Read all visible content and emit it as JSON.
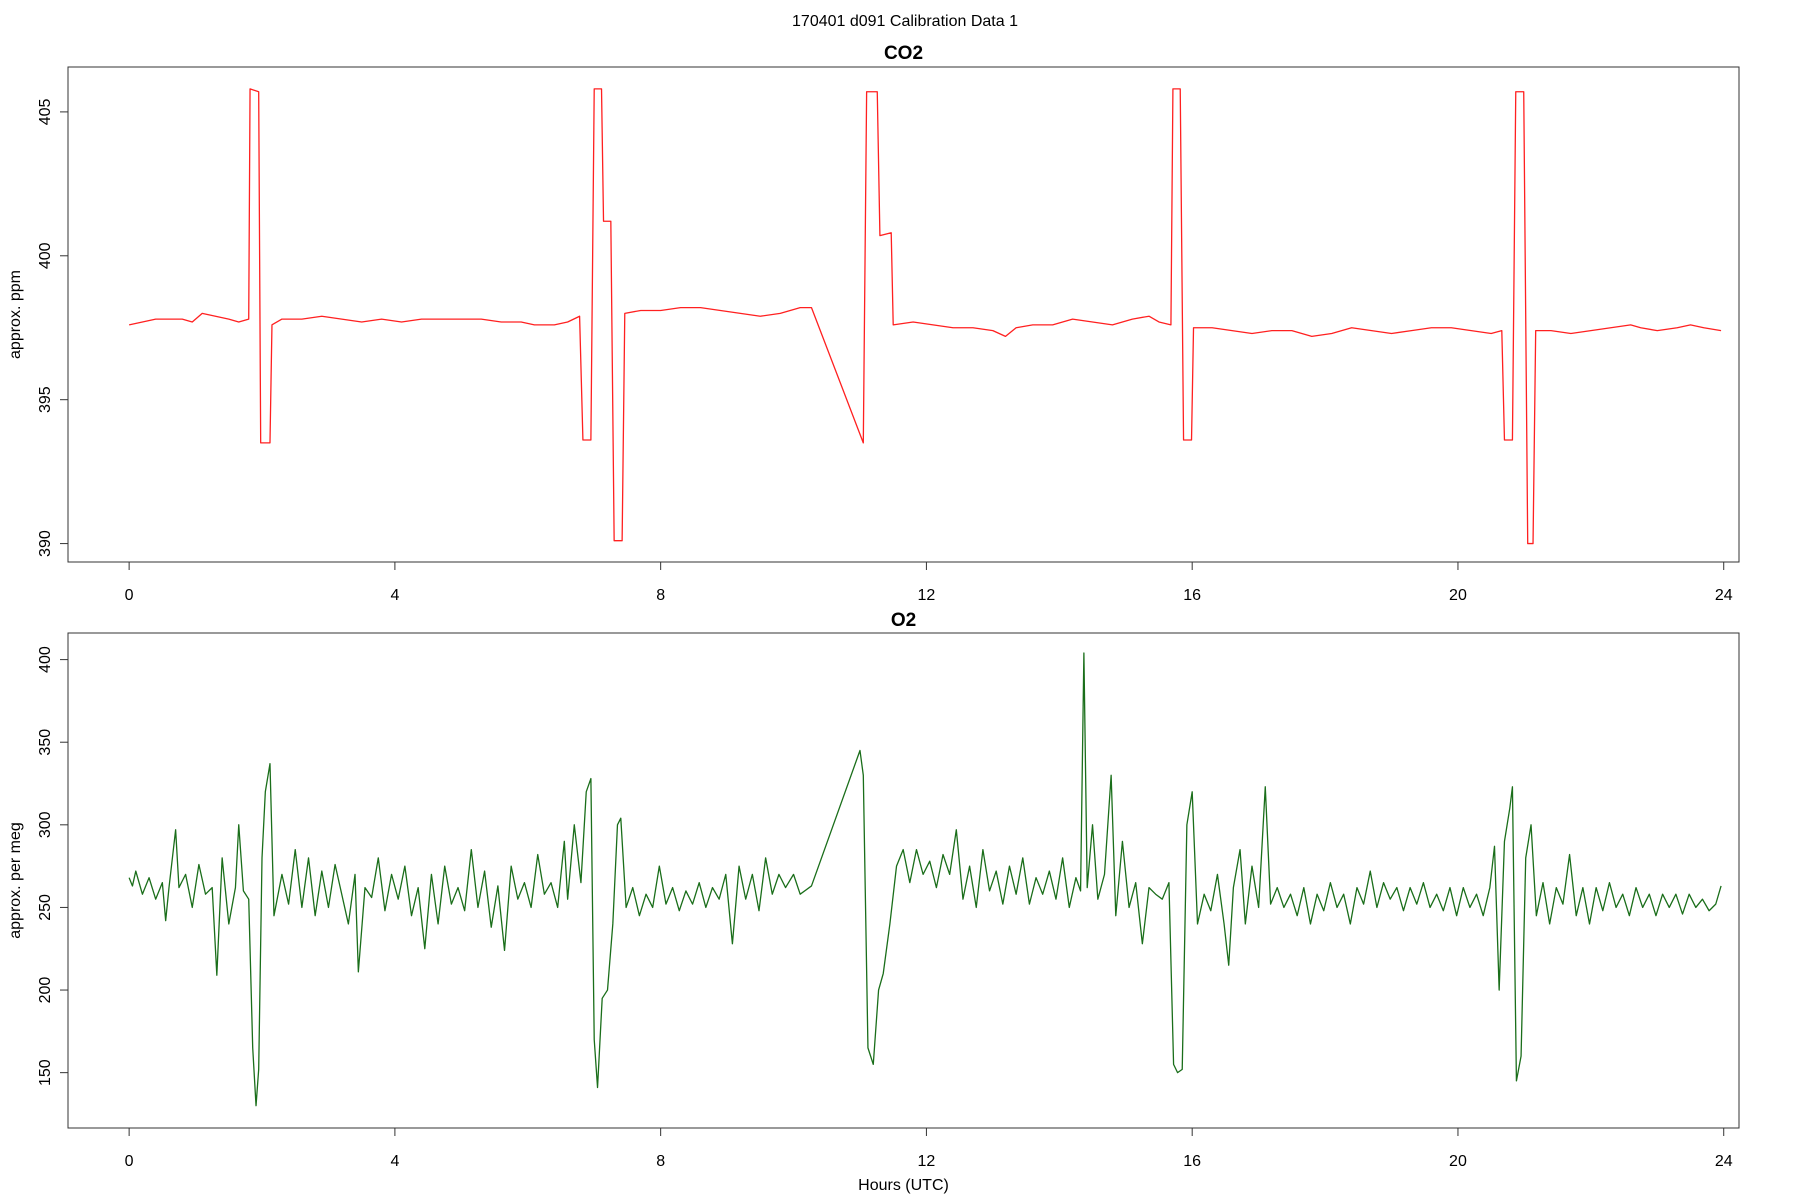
{
  "title": "170401   d091   Calibration Data 1",
  "chart_data": [
    {
      "type": "line",
      "title": "CO2",
      "ylabel": "approx. ppm",
      "color": "#ff2020",
      "xlim": [
        -0.92,
        24.23
      ],
      "xticks": [
        0,
        4,
        8,
        12,
        16,
        20,
        24
      ],
      "ylim": [
        389.36,
        406.56
      ],
      "yticks": [
        390,
        395,
        400,
        405
      ],
      "x": [
        0.0,
        0.2,
        0.4,
        0.6,
        0.8,
        0.95,
        1.1,
        1.3,
        1.5,
        1.65,
        1.8,
        1.82,
        1.95,
        1.98,
        2.12,
        2.15,
        2.3,
        2.6,
        2.9,
        3.2,
        3.5,
        3.8,
        4.1,
        4.4,
        4.7,
        5.0,
        5.3,
        5.6,
        5.9,
        6.1,
        6.4,
        6.6,
        6.78,
        6.83,
        6.95,
        7.0,
        7.11,
        7.14,
        7.25,
        7.3,
        7.42,
        7.46,
        7.7,
        8.0,
        8.3,
        8.6,
        8.9,
        9.2,
        9.5,
        9.8,
        10.1,
        10.27,
        11.05,
        11.1,
        11.26,
        11.3,
        11.47,
        11.5,
        11.8,
        12.1,
        12.4,
        12.7,
        13.0,
        13.19,
        13.35,
        13.6,
        13.9,
        14.2,
        14.5,
        14.8,
        15.1,
        15.35,
        15.5,
        15.68,
        15.71,
        15.82,
        15.87,
        15.99,
        16.02,
        16.3,
        16.6,
        16.9,
        17.2,
        17.5,
        17.8,
        18.1,
        18.4,
        18.7,
        19.0,
        19.3,
        19.6,
        19.9,
        20.2,
        20.5,
        20.66,
        20.7,
        20.82,
        20.87,
        20.99,
        21.05,
        21.13,
        21.17,
        21.4,
        21.7,
        22.0,
        22.3,
        22.6,
        22.75,
        23.0,
        23.3,
        23.5,
        23.7,
        23.96
      ],
      "values": [
        397.6,
        397.7,
        397.8,
        397.8,
        397.8,
        397.7,
        398.0,
        397.9,
        397.8,
        397.7,
        397.8,
        405.8,
        405.7,
        393.5,
        393.5,
        397.6,
        397.8,
        397.8,
        397.9,
        397.8,
        397.7,
        397.8,
        397.7,
        397.8,
        397.8,
        397.8,
        397.8,
        397.7,
        397.7,
        397.6,
        397.6,
        397.7,
        397.9,
        393.6,
        393.6,
        405.8,
        405.8,
        401.2,
        401.2,
        390.1,
        390.1,
        398.0,
        398.1,
        398.1,
        398.2,
        398.2,
        398.1,
        398.0,
        397.9,
        398.0,
        398.2,
        398.2,
        393.5,
        405.7,
        405.7,
        400.7,
        400.8,
        397.6,
        397.7,
        397.6,
        397.5,
        397.5,
        397.4,
        397.2,
        397.5,
        397.6,
        397.6,
        397.8,
        397.7,
        397.6,
        397.8,
        397.9,
        397.7,
        397.6,
        405.8,
        405.8,
        393.6,
        393.6,
        397.5,
        397.5,
        397.4,
        397.3,
        397.4,
        397.4,
        397.2,
        397.3,
        397.5,
        397.4,
        397.3,
        397.4,
        397.5,
        397.5,
        397.4,
        397.3,
        397.4,
        393.6,
        393.6,
        405.7,
        405.7,
        390.0,
        390.0,
        397.4,
        397.4,
        397.3,
        397.4,
        397.5,
        397.6,
        397.5,
        397.4,
        397.5,
        397.6,
        397.5,
        397.4
      ]
    },
    {
      "type": "line",
      "title": "O2",
      "ylabel": "approx. per meg",
      "xlabel": "Hours (UTC)",
      "color": "#1a6e1a",
      "xlim": [
        -0.92,
        24.23
      ],
      "xticks": [
        0,
        4,
        8,
        12,
        16,
        20,
        24
      ],
      "ylim": [
        116.5,
        416.1
      ],
      "yticks": [
        150,
        200,
        250,
        300,
        350,
        400
      ],
      "x": [
        0.0,
        0.05,
        0.1,
        0.2,
        0.3,
        0.4,
        0.5,
        0.55,
        0.6,
        0.7,
        0.75,
        0.85,
        0.95,
        1.05,
        1.15,
        1.25,
        1.32,
        1.4,
        1.5,
        1.6,
        1.65,
        1.72,
        1.8,
        1.86,
        1.91,
        1.95,
        2.0,
        2.05,
        2.12,
        2.18,
        2.3,
        2.4,
        2.5,
        2.6,
        2.7,
        2.8,
        2.9,
        3.0,
        3.1,
        3.2,
        3.3,
        3.4,
        3.45,
        3.55,
        3.65,
        3.75,
        3.85,
        3.95,
        4.05,
        4.15,
        4.25,
        4.35,
        4.45,
        4.55,
        4.65,
        4.75,
        4.85,
        4.95,
        5.05,
        5.15,
        5.25,
        5.35,
        5.45,
        5.55,
        5.65,
        5.75,
        5.85,
        5.95,
        6.05,
        6.15,
        6.25,
        6.35,
        6.45,
        6.55,
        6.6,
        6.7,
        6.8,
        6.88,
        6.95,
        7.0,
        7.05,
        7.12,
        7.2,
        7.28,
        7.35,
        7.4,
        7.48,
        7.58,
        7.68,
        7.78,
        7.88,
        7.98,
        8.08,
        8.18,
        8.28,
        8.38,
        8.48,
        8.58,
        8.68,
        8.78,
        8.88,
        8.98,
        9.08,
        9.18,
        9.28,
        9.38,
        9.48,
        9.58,
        9.68,
        9.78,
        9.88,
        10.0,
        10.1,
        10.27,
        11.0,
        11.05,
        11.12,
        11.2,
        11.28,
        11.35,
        11.45,
        11.55,
        11.65,
        11.75,
        11.85,
        11.95,
        12.05,
        12.15,
        12.25,
        12.35,
        12.45,
        12.55,
        12.65,
        12.75,
        12.85,
        12.95,
        13.05,
        13.15,
        13.25,
        13.35,
        13.45,
        13.55,
        13.65,
        13.75,
        13.85,
        13.95,
        14.05,
        14.15,
        14.25,
        14.32,
        14.37,
        14.42,
        14.5,
        14.58,
        14.68,
        14.78,
        14.85,
        14.95,
        15.05,
        15.15,
        15.25,
        15.35,
        15.45,
        15.55,
        15.65,
        15.72,
        15.78,
        15.85,
        15.92,
        16.0,
        16.08,
        16.18,
        16.28,
        16.38,
        16.48,
        16.55,
        16.62,
        16.72,
        16.8,
        16.9,
        17.0,
        17.1,
        17.18,
        17.28,
        17.38,
        17.48,
        17.58,
        17.68,
        17.78,
        17.88,
        17.98,
        18.08,
        18.18,
        18.28,
        18.38,
        18.48,
        18.58,
        18.68,
        18.78,
        18.88,
        18.98,
        19.08,
        19.18,
        19.28,
        19.38,
        19.48,
        19.58,
        19.68,
        19.78,
        19.88,
        19.98,
        20.08,
        20.18,
        20.28,
        20.38,
        20.48,
        20.55,
        20.62,
        20.7,
        20.78,
        20.82,
        20.88,
        20.95,
        21.02,
        21.1,
        21.18,
        21.28,
        21.38,
        21.48,
        21.58,
        21.68,
        21.78,
        21.88,
        21.98,
        22.08,
        22.18,
        22.28,
        22.38,
        22.48,
        22.58,
        22.68,
        22.78,
        22.88,
        22.98,
        23.08,
        23.18,
        23.28,
        23.38,
        23.48,
        23.58,
        23.68,
        23.78,
        23.88,
        23.96
      ],
      "values": [
        268,
        263,
        272,
        258,
        268,
        255,
        265,
        242,
        262,
        297,
        262,
        270,
        250,
        276,
        258,
        262,
        209,
        280,
        240,
        262,
        300,
        260,
        255,
        165,
        130,
        152,
        280,
        320,
        337,
        245,
        270,
        252,
        285,
        250,
        280,
        245,
        272,
        250,
        276,
        258,
        240,
        270,
        211,
        262,
        256,
        280,
        248,
        270,
        255,
        275,
        245,
        262,
        225,
        270,
        240,
        275,
        252,
        262,
        248,
        285,
        250,
        272,
        238,
        263,
        224,
        275,
        255,
        265,
        250,
        282,
        258,
        265,
        250,
        290,
        255,
        300,
        265,
        320,
        328,
        170,
        141,
        195,
        200,
        240,
        300,
        304,
        250,
        262,
        245,
        258,
        250,
        275,
        252,
        262,
        248,
        260,
        252,
        265,
        250,
        262,
        255,
        270,
        228,
        275,
        255,
        270,
        248,
        280,
        258,
        270,
        262,
        270,
        258,
        263,
        345,
        330,
        165,
        155,
        200,
        210,
        240,
        275,
        285,
        265,
        285,
        270,
        278,
        262,
        282,
        270,
        297,
        255,
        275,
        250,
        285,
        260,
        272,
        252,
        275,
        258,
        280,
        252,
        268,
        258,
        272,
        255,
        280,
        250,
        268,
        260,
        404,
        262,
        300,
        255,
        270,
        330,
        245,
        290,
        250,
        265,
        228,
        262,
        258,
        255,
        265,
        155,
        150,
        152,
        300,
        320,
        240,
        258,
        248,
        270,
        240,
        215,
        262,
        285,
        240,
        275,
        250,
        323,
        252,
        262,
        250,
        258,
        245,
        262,
        240,
        258,
        248,
        265,
        250,
        258,
        240,
        262,
        252,
        272,
        250,
        265,
        255,
        262,
        248,
        262,
        252,
        265,
        250,
        258,
        248,
        262,
        245,
        262,
        250,
        258,
        245,
        262,
        287,
        200,
        290,
        310,
        323,
        145,
        160,
        280,
        300,
        245,
        265,
        240,
        262,
        252,
        282,
        245,
        262,
        240,
        262,
        248,
        265,
        250,
        258,
        245,
        262,
        250,
        258,
        245,
        258,
        250,
        258,
        246,
        258,
        250,
        255,
        248,
        252,
        263
      ]
    }
  ]
}
